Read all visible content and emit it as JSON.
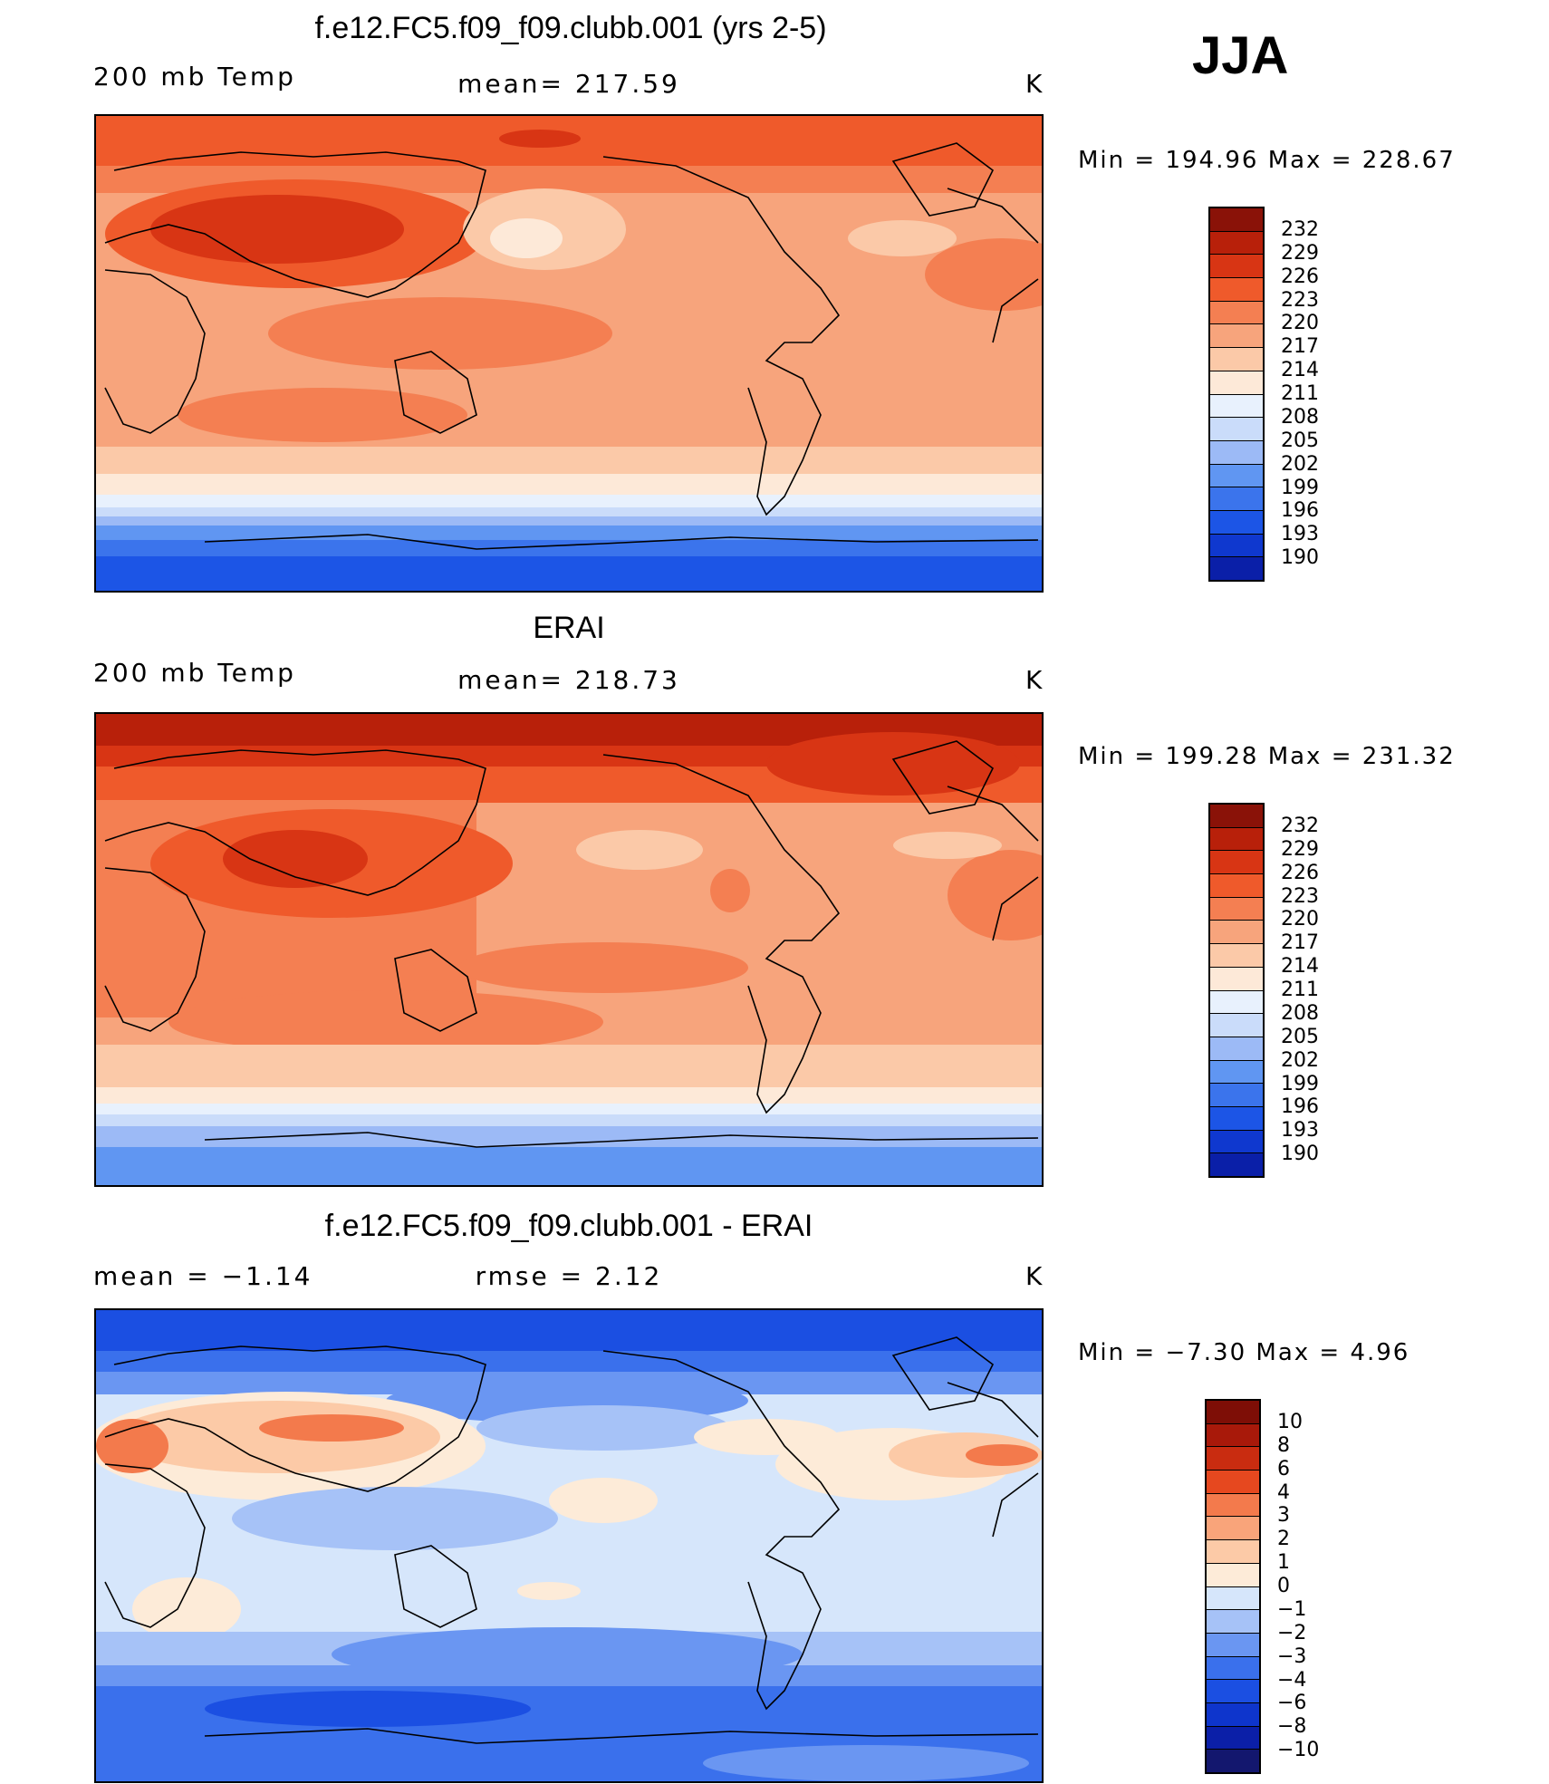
{
  "season": "JJA",
  "colors": {
    "t_scale": [
      "#1a0d6b",
      "#0a1fa8",
      "#0f38cf",
      "#1c55e6",
      "#3b74ec",
      "#6096f2",
      "#9cbaf6",
      "#cadcfa",
      "#e8f1fd",
      "#fde9d8",
      "#fbc9a8",
      "#f7a47c",
      "#f47f52",
      "#ef5a2b",
      "#d83514",
      "#b8200a",
      "#8a1208"
    ],
    "d_scale": [
      "#13176e",
      "#0b1fa8",
      "#0e35cc",
      "#1b4fe2",
      "#3a70ec",
      "#6a96f2",
      "#a6c2f7",
      "#d6e6fb",
      "#fdebd8",
      "#fccaa7",
      "#f9a47a",
      "#f37a4c",
      "#e6481f",
      "#c92c10",
      "#a8190a",
      "#7e0e06"
    ],
    "coast": "#000000"
  },
  "panels": [
    {
      "title": "f.e12.FC5.f09_f09.clubb.001 (yrs 2-5)",
      "left_label": "200 mb Temp",
      "center_label": "mean= 217.59",
      "units": "K",
      "min_max": "Min  =  194.96  Max  =  228.67",
      "colorbar_labels": [
        "232",
        "229",
        "226",
        "223",
        "220",
        "217",
        "214",
        "211",
        "208",
        "205",
        "202",
        "199",
        "196",
        "193",
        "190"
      ],
      "map_alt": "model 200 mb temperature map"
    },
    {
      "title": "ERAI",
      "left_label": "200 mb Temp",
      "center_label": "mean= 218.73",
      "units": "K",
      "min_max": "Min  =  199.28  Max  =  231.32",
      "colorbar_labels": [
        "232",
        "229",
        "226",
        "223",
        "220",
        "217",
        "214",
        "211",
        "208",
        "205",
        "202",
        "199",
        "196",
        "193",
        "190"
      ],
      "map_alt": "ERAI 200 mb temperature map"
    },
    {
      "title": "f.e12.FC5.f09_f09.clubb.001 - ERAI",
      "left_label": "mean =    −1.14",
      "center_label": "rmse =     2.12",
      "units": "K",
      "min_max": "Min  =    −7.30  Max  =      4.96",
      "colorbar_labels": [
        "10",
        "8",
        "6",
        "4",
        "3",
        "2",
        "1",
        "0",
        "−1",
        "−2",
        "−3",
        "−4",
        "−6",
        "−8",
        "−10"
      ],
      "map_alt": "difference map"
    }
  ]
}
